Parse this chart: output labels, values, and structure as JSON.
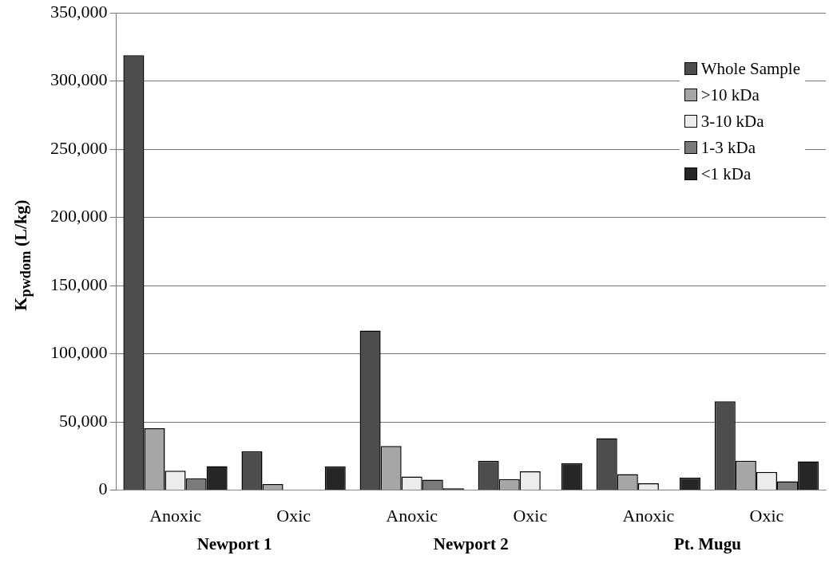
{
  "chart_data": {
    "type": "bar",
    "ylabel": "K$_{pwdom}$ (L/kg)",
    "categories": [
      "Anoxic",
      "Oxic",
      "Anoxic",
      "Oxic",
      "Anoxic",
      "Oxic"
    ],
    "annotations": [
      "Newport 1",
      "Newport 2",
      "Pt. Mugu"
    ],
    "series": [
      {
        "name": "Whole Sample",
        "color": "#4d4d4d",
        "values": [
          319000,
          28400,
          117000,
          21500,
          38100,
          65200
        ]
      },
      {
        "name": ">10 kDa",
        "color": "#a6a6a6",
        "values": [
          45400,
          4500,
          32400,
          8100,
          11700,
          21500
        ]
      },
      {
        "name": "3-10 kDa",
        "color": "#ececec",
        "values": [
          14200,
          null,
          10000,
          13800,
          5100,
          13300
        ]
      },
      {
        "name": "1-3 kDa",
        "color": "#7a7a7a",
        "values": [
          8700,
          null,
          7700,
          0,
          500,
          6500
        ]
      },
      {
        "name": "<1 kDa",
        "color": "#262626",
        "values": [
          17600,
          17500,
          1400,
          19800,
          9100,
          21100
        ]
      }
    ],
    "ylim": [
      0,
      350000
    ],
    "yticks": [
      {
        "value": 0,
        "label": "0"
      },
      {
        "value": 50000,
        "label": "50,000"
      },
      {
        "value": 100000,
        "label": "100,000"
      },
      {
        "value": 150000,
        "label": "150,000"
      },
      {
        "value": 200000,
        "label": "200,000"
      },
      {
        "value": 250000,
        "label": "250,000"
      },
      {
        "value": 300000,
        "label": "300,000"
      },
      {
        "value": 350000,
        "label": "350,000"
      }
    ],
    "grid": "y",
    "legend": "top right"
  }
}
